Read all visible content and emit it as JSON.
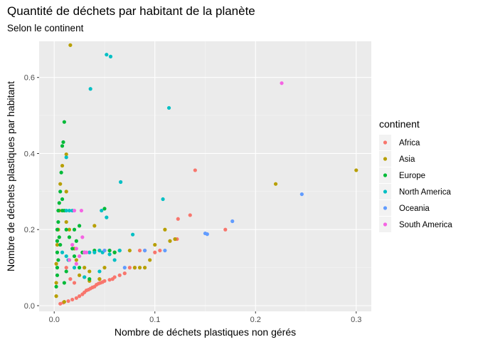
{
  "chart_data": {
    "type": "scatter",
    "title": "Quantité de déchets par habitant de la planète",
    "subtitle": "Selon le continent",
    "xlabel": "Nombre de déchets plastiques non gérés",
    "ylabel": "Nombre de déchets plastiques par habitant",
    "xlim": [
      -0.015,
      0.315
    ],
    "ylim": [
      -0.015,
      0.695
    ],
    "xticks": [
      0.0,
      0.1,
      0.2,
      0.3
    ],
    "xtick_labels": [
      "0.0",
      "0.1",
      "0.2",
      "0.3"
    ],
    "yticks": [
      0.0,
      0.2,
      0.4,
      0.6
    ],
    "ytick_labels": [
      "0.0",
      "0.2",
      "0.4",
      "0.6"
    ],
    "grid": true,
    "legend": {
      "title": "continent",
      "position": "right"
    },
    "series": [
      {
        "name": "Africa",
        "color": "#F8766D",
        "points": [
          [
            0.006,
            0.005
          ],
          [
            0.009,
            0.008
          ],
          [
            0.014,
            0.012
          ],
          [
            0.018,
            0.016
          ],
          [
            0.022,
            0.02
          ],
          [
            0.025,
            0.025
          ],
          [
            0.028,
            0.03
          ],
          [
            0.03,
            0.035
          ],
          [
            0.032,
            0.04
          ],
          [
            0.034,
            0.042
          ],
          [
            0.036,
            0.045
          ],
          [
            0.038,
            0.048
          ],
          [
            0.04,
            0.05
          ],
          [
            0.042,
            0.055
          ],
          [
            0.044,
            0.058
          ],
          [
            0.046,
            0.06
          ],
          [
            0.048,
            0.062
          ],
          [
            0.05,
            0.065
          ],
          [
            0.055,
            0.068
          ],
          [
            0.058,
            0.07
          ],
          [
            0.06,
            0.075
          ],
          [
            0.065,
            0.08
          ],
          [
            0.07,
            0.085
          ],
          [
            0.075,
            0.1
          ],
          [
            0.08,
            0.1
          ],
          [
            0.045,
            0.07
          ],
          [
            0.05,
            0.145
          ],
          [
            0.055,
            0.145
          ],
          [
            0.06,
            0.14
          ],
          [
            0.085,
            0.145
          ],
          [
            0.09,
            0.145
          ],
          [
            0.1,
            0.14
          ],
          [
            0.105,
            0.145
          ],
          [
            0.12,
            0.175
          ],
          [
            0.122,
            0.175
          ],
          [
            0.123,
            0.228
          ],
          [
            0.135,
            0.238
          ],
          [
            0.14,
            0.356
          ],
          [
            0.17,
            0.2
          ],
          [
            0.02,
            0.06
          ],
          [
            0.016,
            0.07
          ],
          [
            0.012,
            0.1
          ]
        ]
      },
      {
        "name": "Asia",
        "color": "#B79F00",
        "points": [
          [
            0.016,
            0.685
          ],
          [
            0.012,
            0.398
          ],
          [
            0.008,
            0.368
          ],
          [
            0.006,
            0.32
          ],
          [
            0.005,
            0.25
          ],
          [
            0.004,
            0.2
          ],
          [
            0.003,
            0.16
          ],
          [
            0.002,
            0.11
          ],
          [
            0.002,
            0.06
          ],
          [
            0.002,
            0.025
          ],
          [
            0.01,
            0.01
          ],
          [
            0.012,
            0.3
          ],
          [
            0.012,
            0.22
          ],
          [
            0.015,
            0.2
          ],
          [
            0.02,
            0.15
          ],
          [
            0.022,
            0.12
          ],
          [
            0.025,
            0.08
          ],
          [
            0.03,
            0.1
          ],
          [
            0.03,
            0.075
          ],
          [
            0.035,
            0.065
          ],
          [
            0.04,
            0.21
          ],
          [
            0.045,
            0.07
          ],
          [
            0.05,
            0.1
          ],
          [
            0.06,
            0.14
          ],
          [
            0.075,
            0.145
          ],
          [
            0.08,
            0.1
          ],
          [
            0.085,
            0.1
          ],
          [
            0.09,
            0.1
          ],
          [
            0.095,
            0.12
          ],
          [
            0.1,
            0.16
          ],
          [
            0.11,
            0.2
          ],
          [
            0.115,
            0.17
          ],
          [
            0.12,
            0.175
          ],
          [
            0.22,
            0.32
          ],
          [
            0.3,
            0.356
          ],
          [
            0.035,
            0.09
          ]
        ]
      },
      {
        "name": "Europe",
        "color": "#00BA38",
        "points": [
          [
            0.01,
            0.483
          ],
          [
            0.009,
            0.43
          ],
          [
            0.008,
            0.42
          ],
          [
            0.007,
            0.35
          ],
          [
            0.006,
            0.3
          ],
          [
            0.005,
            0.27
          ],
          [
            0.004,
            0.25
          ],
          [
            0.004,
            0.22
          ],
          [
            0.003,
            0.2
          ],
          [
            0.003,
            0.17
          ],
          [
            0.003,
            0.14
          ],
          [
            0.004,
            0.12
          ],
          [
            0.003,
            0.1
          ],
          [
            0.003,
            0.08
          ],
          [
            0.002,
            0.05
          ],
          [
            0.008,
            0.28
          ],
          [
            0.008,
            0.25
          ],
          [
            0.01,
            0.25
          ],
          [
            0.012,
            0.2
          ],
          [
            0.015,
            0.18
          ],
          [
            0.018,
            0.15
          ],
          [
            0.02,
            0.13
          ],
          [
            0.022,
            0.17
          ],
          [
            0.025,
            0.1
          ],
          [
            0.028,
            0.14
          ],
          [
            0.03,
            0.14
          ],
          [
            0.035,
            0.07
          ],
          [
            0.04,
            0.145
          ],
          [
            0.045,
            0.145
          ],
          [
            0.05,
            0.255
          ],
          [
            0.055,
            0.145
          ],
          [
            0.06,
            0.14
          ],
          [
            0.065,
            0.145
          ],
          [
            0.01,
            0.06
          ],
          [
            0.012,
            0.09
          ],
          [
            0.015,
            0.12
          ],
          [
            0.02,
            0.2
          ],
          [
            0.025,
            0.21
          ],
          [
            0.006,
            0.16
          ],
          [
            0.005,
            0.18
          ]
        ]
      },
      {
        "name": "North America",
        "color": "#00BFC4",
        "points": [
          [
            0.052,
            0.66
          ],
          [
            0.056,
            0.655
          ],
          [
            0.036,
            0.57
          ],
          [
            0.114,
            0.52
          ],
          [
            0.012,
            0.39
          ],
          [
            0.066,
            0.325
          ],
          [
            0.108,
            0.28
          ],
          [
            0.047,
            0.25
          ],
          [
            0.052,
            0.232
          ],
          [
            0.078,
            0.187
          ],
          [
            0.012,
            0.25
          ],
          [
            0.015,
            0.25
          ],
          [
            0.018,
            0.25
          ],
          [
            0.055,
            0.135
          ],
          [
            0.04,
            0.14
          ],
          [
            0.035,
            0.14
          ],
          [
            0.06,
            0.12
          ],
          [
            0.045,
            0.09
          ],
          [
            0.03,
            0.075
          ],
          [
            0.014,
            0.12
          ],
          [
            0.02,
            0.1
          ],
          [
            0.008,
            0.14
          ],
          [
            0.012,
            0.13
          ],
          [
            0.045,
            0.145
          ],
          [
            0.048,
            0.14
          ],
          [
            0.065,
            0.145
          ]
        ]
      },
      {
        "name": "Oceania",
        "color": "#619CFF",
        "points": [
          [
            0.246,
            0.293
          ],
          [
            0.177,
            0.222
          ],
          [
            0.152,
            0.188
          ],
          [
            0.15,
            0.19
          ],
          [
            0.11,
            0.145
          ],
          [
            0.09,
            0.145
          ],
          [
            0.05,
            0.145
          ],
          [
            0.07,
            0.1
          ]
        ]
      },
      {
        "name": "South America",
        "color": "#F564E3",
        "points": [
          [
            0.226,
            0.585
          ],
          [
            0.027,
            0.25
          ],
          [
            0.02,
            0.25
          ],
          [
            0.028,
            0.18
          ],
          [
            0.018,
            0.16
          ],
          [
            0.022,
            0.15
          ],
          [
            0.03,
            0.14
          ],
          [
            0.032,
            0.14
          ],
          [
            0.025,
            0.13
          ],
          [
            0.015,
            0.12
          ],
          [
            0.022,
            0.11
          ]
        ]
      }
    ]
  }
}
